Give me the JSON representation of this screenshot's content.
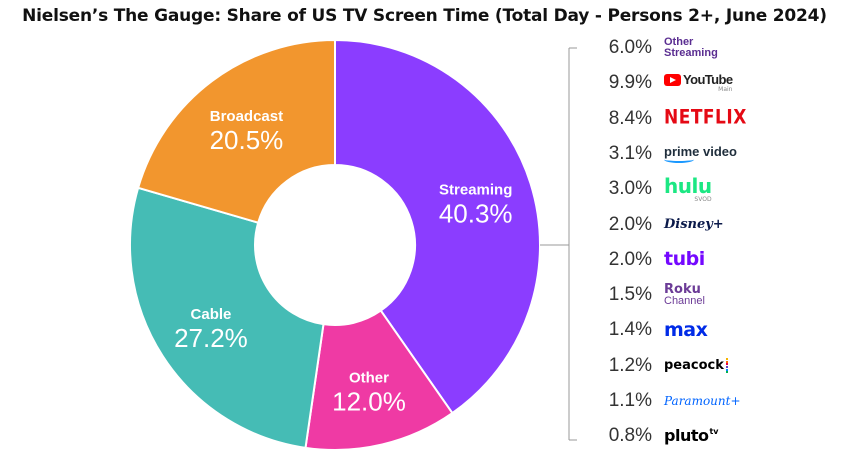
{
  "title": "Nielsen’s The Gauge: Share of US TV Screen Time (Total Day - Persons 2+, June 2024)",
  "chart_data": [
    {
      "type": "pie",
      "donut": true,
      "slices": [
        {
          "label": "Streaming",
          "value": 40.3,
          "value_label": "40.3%",
          "color": "#8b3dff"
        },
        {
          "label": "Other",
          "value": 12.0,
          "value_label": "12.0%",
          "color": "#ef3aa4"
        },
        {
          "label": "Cable",
          "value": 27.2,
          "value_label": "27.2%",
          "color": "#45bcb5"
        },
        {
          "label": "Broadcast",
          "value": 20.5,
          "value_label": "20.5%",
          "color": "#f2962e"
        }
      ]
    },
    {
      "type": "table",
      "parent": "Streaming",
      "rows": [
        {
          "value": 6.0,
          "value_label": "6.0%",
          "name_line1": "Other",
          "name_line2": "Streaming",
          "icon": "other-streaming-text",
          "color": "#5a2d91"
        },
        {
          "value": 9.9,
          "value_label": "9.9%",
          "name_line1": "YouTube",
          "sub": "Main",
          "icon": "youtube-logo",
          "color": "#ff0000"
        },
        {
          "value": 8.4,
          "value_label": "8.4%",
          "name_line1": "NETFLIX",
          "icon": "netflix-logo",
          "color": "#e50914"
        },
        {
          "value": 3.1,
          "value_label": "3.1%",
          "name_line1": "prime video",
          "icon": "prime-video-logo",
          "color": "#1a98ff"
        },
        {
          "value": 3.0,
          "value_label": "3.0%",
          "name_line1": "hulu",
          "sub": "SVOD",
          "icon": "hulu-logo",
          "color": "#1ce783"
        },
        {
          "value": 2.0,
          "value_label": "2.0%",
          "name_line1": "Disney+",
          "icon": "disney-plus-logo",
          "color": "#0b1a4a"
        },
        {
          "value": 2.0,
          "value_label": "2.0%",
          "name_line1": "tubi",
          "icon": "tubi-logo",
          "color": "#7408ff"
        },
        {
          "value": 1.5,
          "value_label": "1.5%",
          "name_line1": "Roku",
          "name_line2": "Channel",
          "icon": "roku-channel-logo",
          "color": "#6c3c97"
        },
        {
          "value": 1.4,
          "value_label": "1.4%",
          "name_line1": "max",
          "icon": "max-logo",
          "color": "#002be7"
        },
        {
          "value": 1.2,
          "value_label": "1.2%",
          "name_line1": "peacock",
          "icon": "peacock-logo",
          "color": "#000000"
        },
        {
          "value": 1.1,
          "value_label": "1.1%",
          "name_line1": "Paramount+",
          "icon": "paramount-plus-logo",
          "color": "#0064ff"
        },
        {
          "value": 0.8,
          "value_label": "0.8%",
          "name_line1": "pluto",
          "name_line2": "tv",
          "icon": "pluto-tv-logo",
          "color": "#000000"
        }
      ]
    }
  ]
}
